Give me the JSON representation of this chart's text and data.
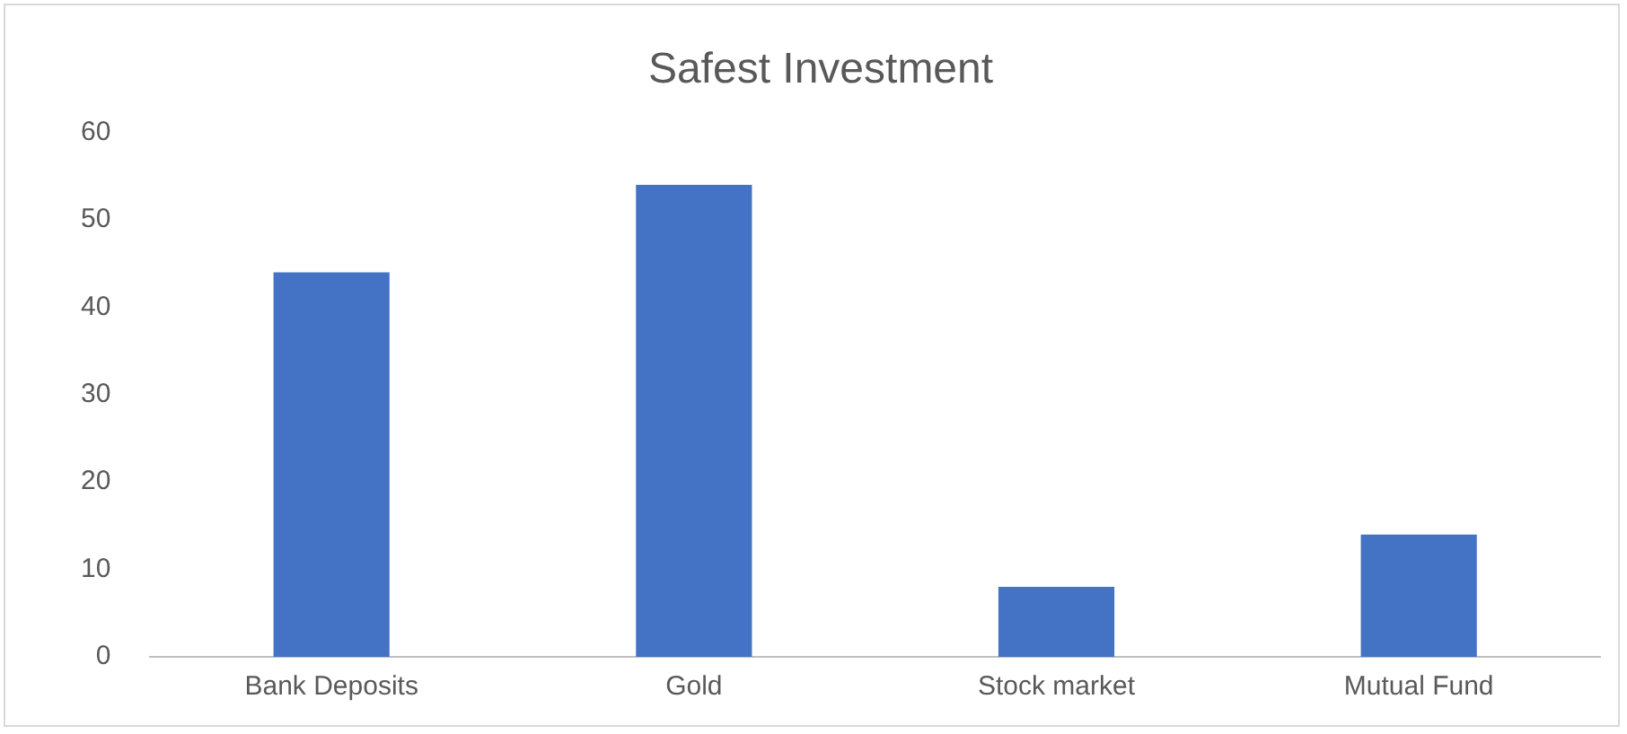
{
  "chart_data": {
    "type": "bar",
    "title": "Safest Investment",
    "categories": [
      "Bank Deposits",
      "Gold",
      "Stock market",
      "Mutual Fund"
    ],
    "values": [
      44,
      54,
      8,
      14
    ],
    "color": "#4472c4",
    "ylim": [
      0,
      60
    ],
    "yticks": [
      0,
      10,
      20,
      30,
      40,
      50,
      60
    ],
    "grid": false,
    "legend": false
  }
}
